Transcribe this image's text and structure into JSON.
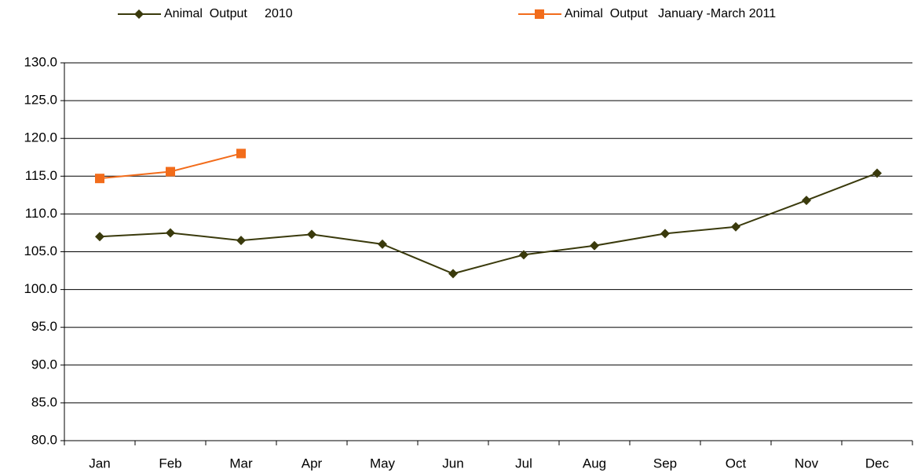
{
  "chart_data": {
    "type": "line",
    "categories": [
      "Jan",
      "Feb",
      "Mar",
      "Apr",
      "May",
      "Jun",
      "Jul",
      "Aug",
      "Sep",
      "Oct",
      "Nov",
      "Dec"
    ],
    "series": [
      {
        "name": "Animal  Output     2010",
        "color": "#3a3a0c",
        "marker": "diamond",
        "values": [
          107.0,
          107.5,
          106.5,
          107.3,
          106.0,
          102.1,
          104.6,
          105.8,
          107.4,
          108.3,
          111.8,
          115.4
        ]
      },
      {
        "name": "Animal  Output   January -March 2011",
        "color": "#f26c1b",
        "marker": "square",
        "values": [
          114.7,
          115.6,
          118.0,
          null,
          null,
          null,
          null,
          null,
          null,
          null,
          null,
          null
        ]
      }
    ],
    "ylim": [
      80,
      130
    ],
    "yticks": [
      {
        "value": 80,
        "label": "80.0"
      },
      {
        "value": 85,
        "label": "85.0"
      },
      {
        "value": 90,
        "label": "90.0"
      },
      {
        "value": 95,
        "label": "95.0"
      },
      {
        "value": 100,
        "label": "100.0"
      },
      {
        "value": 105,
        "label": "105.0"
      },
      {
        "value": 110,
        "label": "110.0"
      },
      {
        "value": 115,
        "label": "115.0"
      },
      {
        "value": 120,
        "label": "120.0"
      },
      {
        "value": 125,
        "label": "125.0"
      },
      {
        "value": 130,
        "label": "130.0"
      }
    ],
    "grid": true,
    "legend": "top"
  }
}
